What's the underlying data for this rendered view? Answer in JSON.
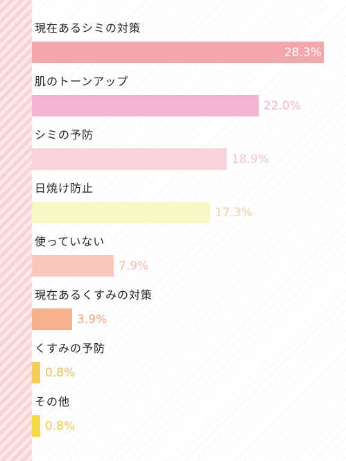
{
  "chart_data": {
    "type": "bar",
    "orientation": "horizontal",
    "categories": [
      "現在あるシミの対策",
      "肌のトーンアップ",
      "シミの予防",
      "日焼け防止",
      "使っていない",
      "現在あるくすみの対策",
      "くすみの予防",
      "その他"
    ],
    "values": [
      28.3,
      22.0,
      18.9,
      17.3,
      7.9,
      3.9,
      0.8,
      0.8
    ],
    "value_labels": [
      "28.3%",
      "22.0%",
      "18.9%",
      "17.3%",
      "7.9%",
      "3.9%",
      "0.8%",
      "0.8%"
    ],
    "bar_colors": [
      "#f2a7ac",
      "#f4b5d5",
      "#f9d3dc",
      "#f7f8c6",
      "#f9c8bd",
      "#f5b08d",
      "#f1cd60",
      "#f3d74c"
    ],
    "label_colors": [
      "#ffffff",
      "#f4b5d5",
      "#f6c3d0",
      "#f1cfa6",
      "#f6bcae",
      "#f3a47e",
      "#e8c35a",
      "#ecca50"
    ],
    "label_inside": [
      true,
      false,
      false,
      false,
      false,
      false,
      false,
      false
    ],
    "title": "",
    "xlabel": "",
    "ylabel": "",
    "xlim": [
      0,
      28.3
    ],
    "grid": false,
    "legend": "none"
  }
}
